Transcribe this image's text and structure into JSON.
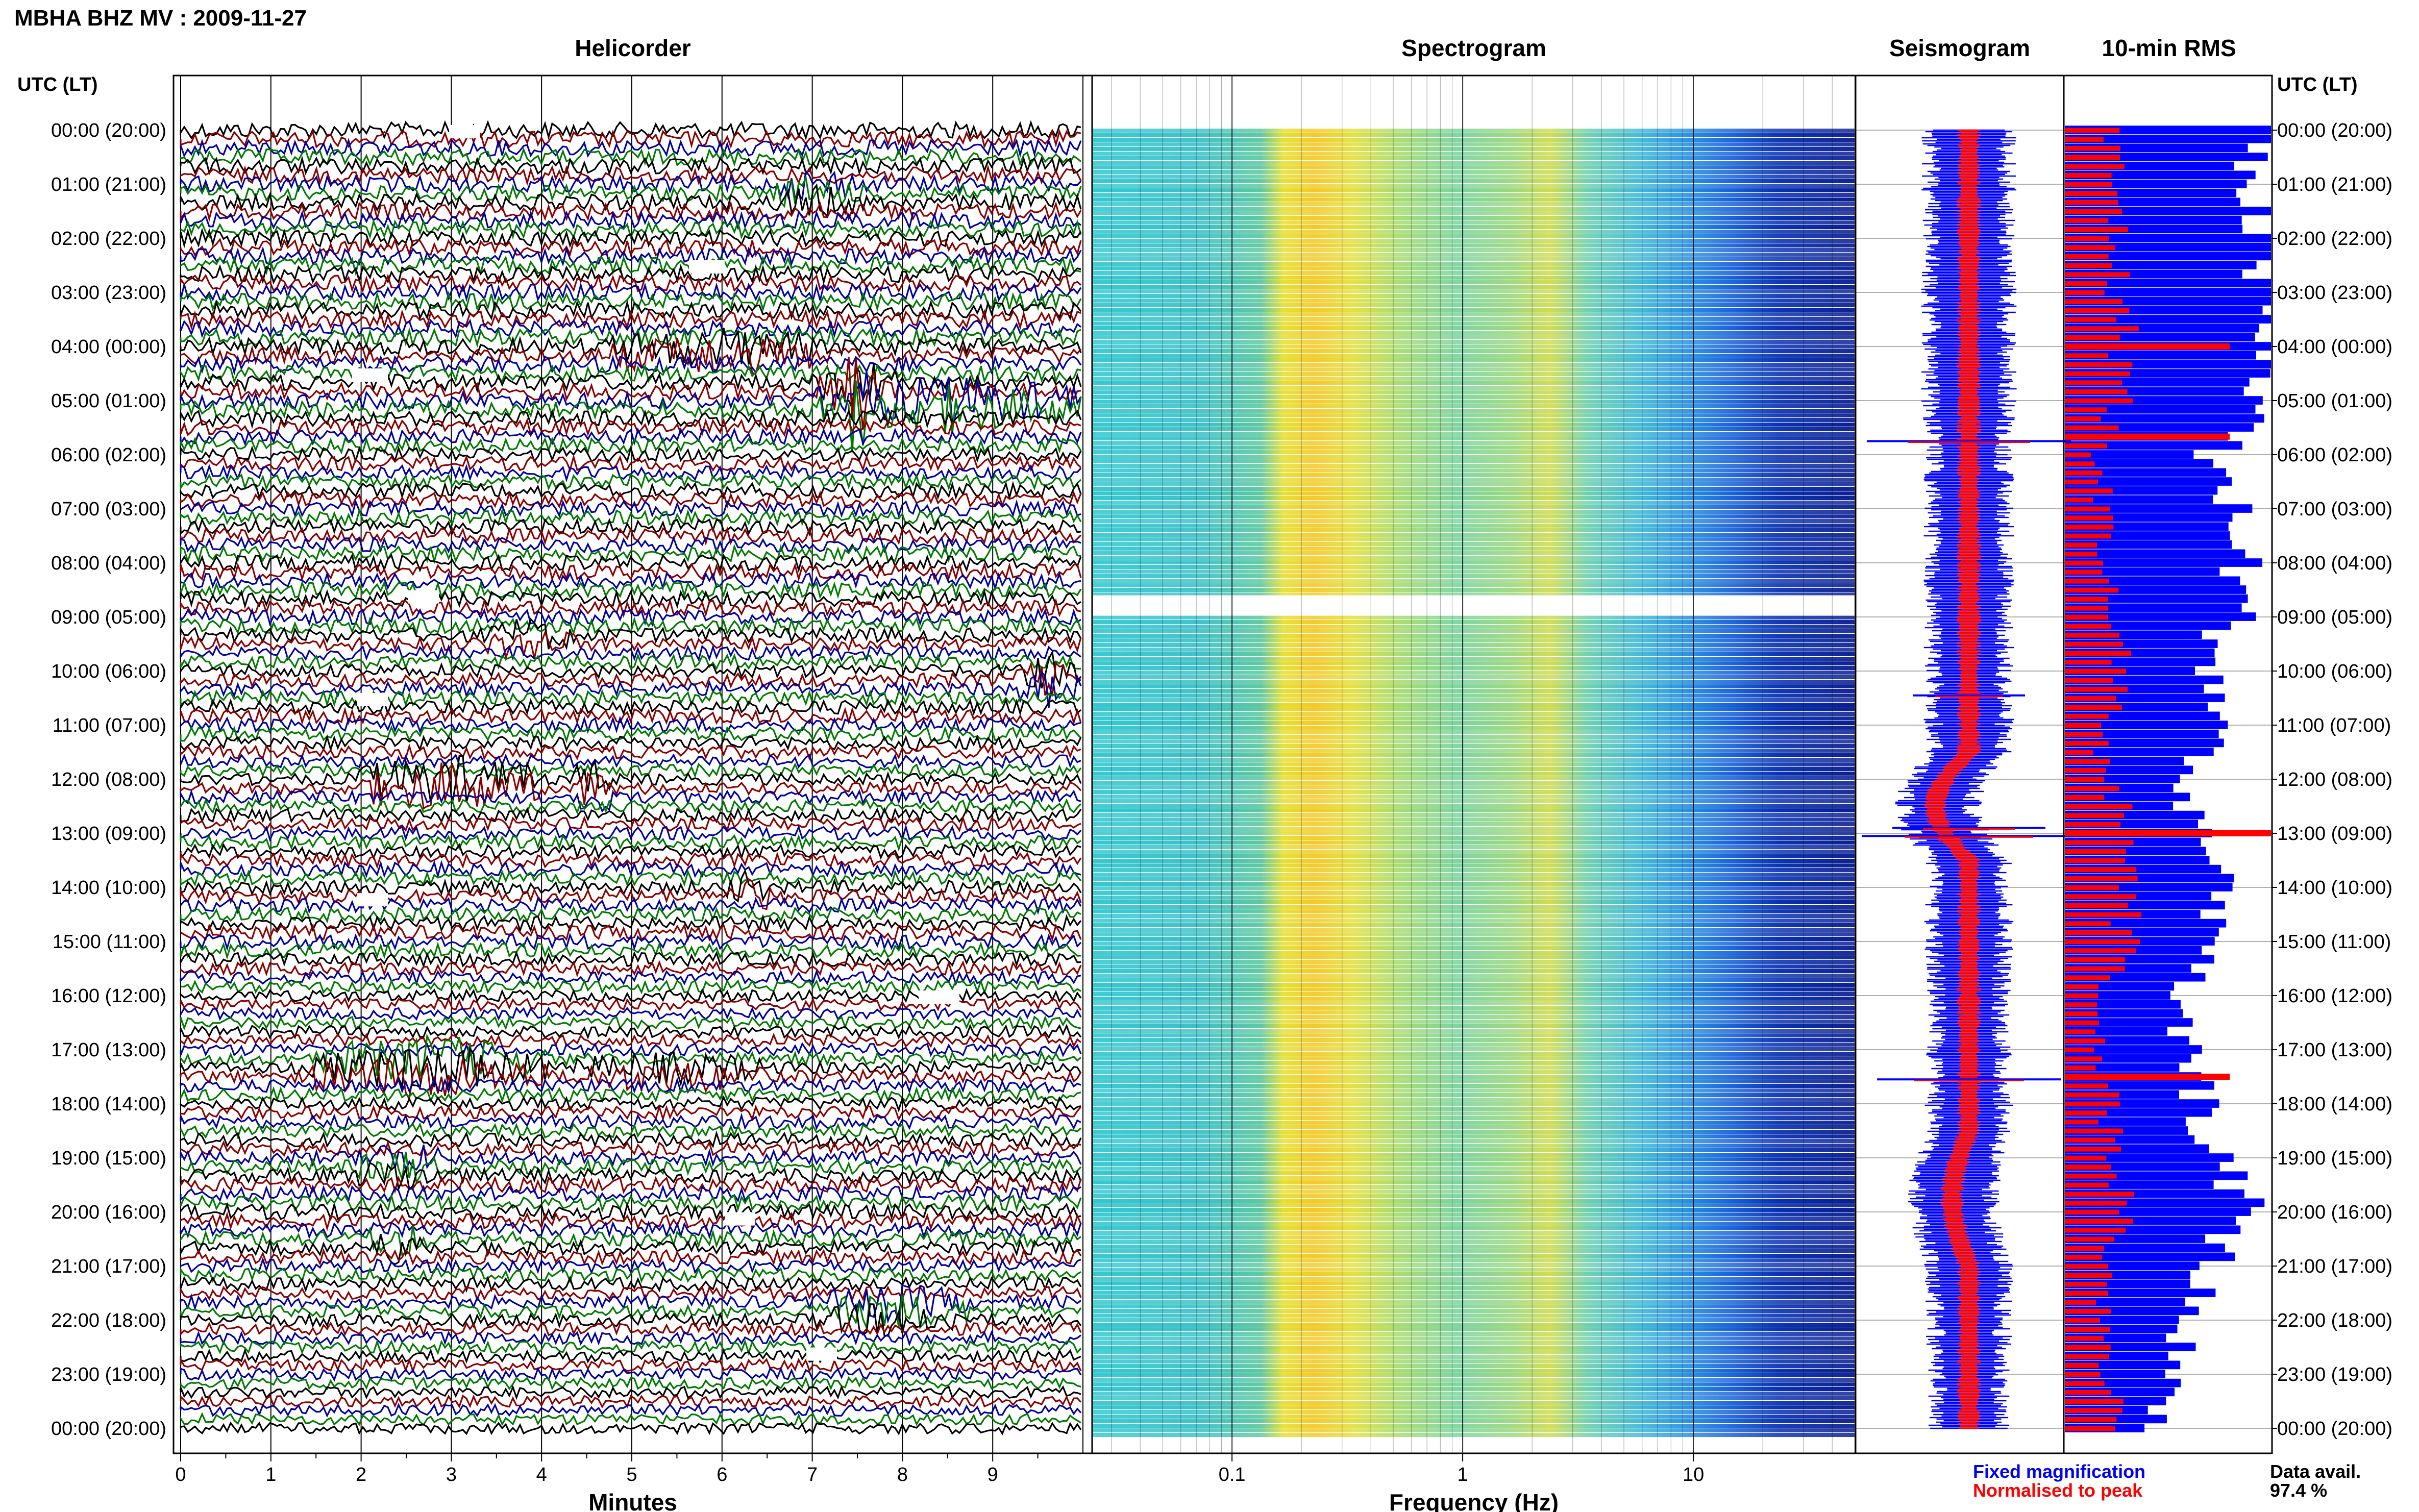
{
  "title": "MBHA BHZ MV : 2009-11-27",
  "axis_label_left": "UTC (LT)",
  "axis_label_right": "UTC (LT)",
  "panels": {
    "helicorder": "Helicorder",
    "spectrogram": "Spectrogram",
    "seismogram": "Seismogram",
    "rms": "10-min RMS"
  },
  "time_labels": [
    "00:00 (20:00)",
    "01:00 (21:00)",
    "02:00 (22:00)",
    "03:00 (23:00)",
    "04:00 (00:00)",
    "05:00 (01:00)",
    "06:00 (02:00)",
    "07:00 (03:00)",
    "08:00 (04:00)",
    "09:00 (05:00)",
    "10:00 (06:00)",
    "11:00 (07:00)",
    "12:00 (08:00)",
    "13:00 (09:00)",
    "14:00 (10:00)",
    "15:00 (11:00)",
    "16:00 (12:00)",
    "17:00 (13:00)",
    "18:00 (14:00)",
    "19:00 (15:00)",
    "20:00 (16:00)",
    "21:00 (17:00)",
    "22:00 (18:00)",
    "23:00 (19:00)",
    "00:00 (20:00)"
  ],
  "helicorder_axis": {
    "xlabel": "Minutes",
    "ticks": [
      "0",
      "1",
      "2",
      "3",
      "4",
      "5",
      "6",
      "7",
      "8",
      "9"
    ],
    "xlim": [
      0,
      10
    ],
    "trace_colors": [
      "#000000",
      "#8b0000",
      "#0000a0",
      "#007a00"
    ]
  },
  "spectrogram_axis": {
    "xlabel": "Frequency (Hz)",
    "ticks": [
      "0.1",
      "1",
      "10"
    ],
    "tick_values": [
      0.1,
      1,
      10
    ],
    "xlim": [
      0.025,
      50
    ],
    "scale": "log"
  },
  "legend": {
    "fixed": "Fixed magnification",
    "normalised": "Normalised to peak",
    "fixed_color": "#0000ff",
    "normalised_color": "#ff0000"
  },
  "availability": {
    "label": "Data avail.",
    "value": "97.4 %"
  },
  "chart_data": [
    {
      "type": "line",
      "panel": "Helicorder",
      "xlabel": "Minutes",
      "xlim": [
        0,
        10
      ],
      "rows_per_hour": 6,
      "hours": 24,
      "grid": true
    },
    {
      "type": "heatmap",
      "panel": "Spectrogram",
      "xlabel": "Frequency (Hz)",
      "xlim": [
        0.025,
        50
      ],
      "scale": "log",
      "peak_band_hz": [
        0.15,
        0.35
      ],
      "gap_utc": "08:40"
    },
    {
      "type": "bar",
      "panel": "10-min RMS",
      "legend": "bottom",
      "hourly_levels_fixed": [
        0.95,
        0.93,
        0.94,
        0.96,
        0.97,
        0.98,
        0.72,
        0.8,
        0.86,
        0.82,
        0.7,
        0.78,
        0.55,
        0.68,
        0.72,
        0.8,
        0.5,
        0.58,
        0.66,
        0.72,
        0.88,
        0.7,
        0.6,
        0.52,
        0.45
      ],
      "hourly_levels_normalised": [
        0.22,
        0.24,
        0.26,
        0.25,
        0.3,
        0.28,
        0.15,
        0.2,
        0.2,
        0.22,
        0.3,
        0.2,
        0.18,
        0.34,
        0.26,
        0.32,
        0.14,
        0.18,
        0.22,
        0.24,
        0.3,
        0.2,
        0.2,
        0.18,
        0.26
      ],
      "peak_events_utc": [
        "04:00",
        "05:40",
        "13:00",
        "17:30"
      ]
    },
    {
      "type": "line",
      "panel": "Seismogram",
      "series": [
        {
          "name": "Fixed magnification",
          "color": "#0000ff"
        },
        {
          "name": "Normalised to peak",
          "color": "#ff0000"
        }
      ]
    }
  ]
}
